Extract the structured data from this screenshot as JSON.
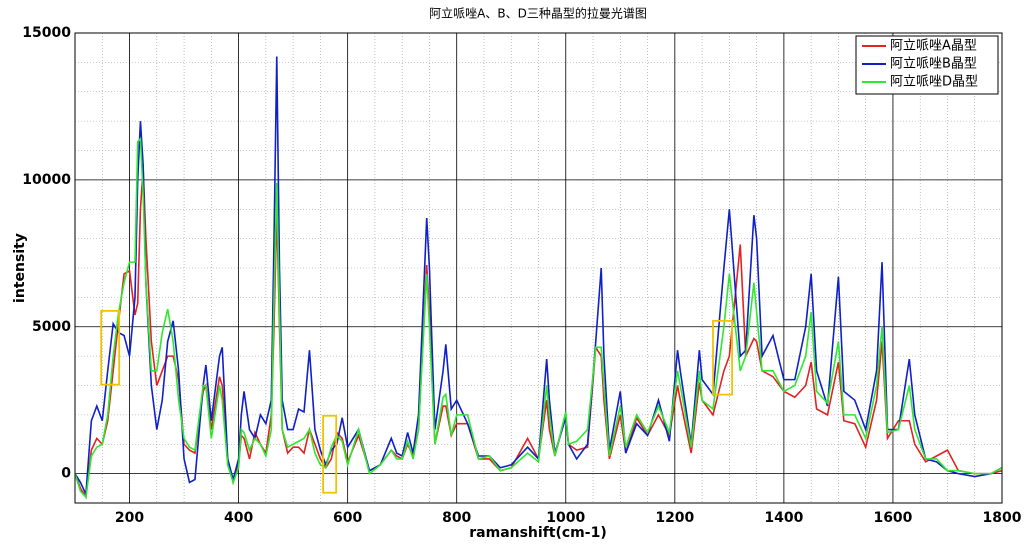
{
  "chart_data": {
    "type": "line",
    "title": "阿立哌唑A、B、D三种晶型的拉曼光谱图",
    "xlabel": "ramanshift(cm-1)",
    "ylabel": "intensity",
    "xlim": [
      100,
      1800
    ],
    "xticks": [
      200,
      400,
      600,
      800,
      1000,
      1200,
      1400,
      1600,
      1800
    ],
    "ylim": [
      -1000,
      15000
    ],
    "yticks": [
      0,
      5000,
      10000,
      15000
    ],
    "grid": true,
    "minor_grid": true,
    "legend": "upper right",
    "highlight_color": "#f2c200",
    "highlights": [
      {
        "xlim": [
          148,
          181
        ],
        "ylim": [
          3030,
          5540
        ]
      },
      {
        "xlim": [
          555,
          579
        ],
        "ylim": [
          -650,
          1970
        ]
      },
      {
        "xlim": [
          1270,
          1305
        ],
        "ylim": [
          2690,
          5200
        ]
      }
    ],
    "x": [
      100,
      110,
      120,
      130,
      140,
      150,
      160,
      170,
      180,
      190,
      200,
      210,
      215,
      220,
      225,
      230,
      240,
      250,
      260,
      270,
      280,
      290,
      300,
      310,
      320,
      335,
      340,
      350,
      365,
      370,
      380,
      390,
      400,
      405,
      410,
      420,
      430,
      440,
      450,
      460,
      465,
      470,
      475,
      480,
      490,
      500,
      510,
      520,
      530,
      540,
      550,
      560,
      570,
      580,
      590,
      600,
      620,
      640,
      660,
      680,
      690,
      700,
      710,
      720,
      730,
      745,
      750,
      760,
      775,
      780,
      790,
      800,
      820,
      840,
      860,
      880,
      900,
      930,
      950,
      965,
      970,
      980,
      1000,
      1005,
      1020,
      1040,
      1055,
      1065,
      1070,
      1080,
      1100,
      1110,
      1130,
      1150,
      1170,
      1190,
      1205,
      1210,
      1230,
      1245,
      1250,
      1270,
      1290,
      1300,
      1320,
      1330,
      1345,
      1350,
      1360,
      1380,
      1400,
      1420,
      1440,
      1450,
      1460,
      1480,
      1500,
      1510,
      1530,
      1550,
      1570,
      1580,
      1590,
      1610,
      1630,
      1640,
      1660,
      1680,
      1700,
      1720,
      1750,
      1780,
      1800
    ],
    "series": [
      {
        "name": "阿立哌唑A晶型",
        "color": "#e32222",
        "values": [
          0,
          -500,
          -800,
          800,
          1200,
          1000,
          1800,
          3500,
          5200,
          6800,
          6900,
          5400,
          5800,
          9000,
          10400,
          8000,
          4500,
          3000,
          3500,
          4000,
          4000,
          3200,
          1000,
          800,
          700,
          2800,
          3000,
          1500,
          3300,
          3000,
          500,
          -300,
          300,
          1300,
          1200,
          500,
          1400,
          1000,
          700,
          2000,
          5000,
          9000,
          5000,
          1500,
          700,
          900,
          900,
          700,
          1500,
          1000,
          500,
          200,
          500,
          1400,
          1200,
          400,
          1300,
          100,
          300,
          800,
          600,
          500,
          1000,
          600,
          1500,
          7100,
          5500,
          1000,
          2300,
          2300,
          1300,
          1700,
          1700,
          500,
          500,
          100,
          200,
          1200,
          500,
          2500,
          1500,
          600,
          2000,
          1000,
          800,
          900,
          4300,
          4000,
          2500,
          500,
          2000,
          700,
          1900,
          1300,
          2000,
          1300,
          3000,
          2500,
          700,
          3100,
          2500,
          2000,
          3500,
          4000,
          7800,
          4000,
          4600,
          4500,
          3500,
          3300,
          2800,
          2600,
          3000,
          3800,
          2200,
          2000,
          3800,
          1800,
          1700,
          900,
          2500,
          4500,
          1200,
          1800,
          1800,
          1000,
          400,
          600,
          800,
          100,
          0,
          0,
          100
        ]
      },
      {
        "name": "阿立哌唑B晶型",
        "color": "#1020c8",
        "values": [
          0,
          -300,
          -700,
          1800,
          2300,
          1800,
          3500,
          5100,
          4800,
          4700,
          4000,
          6000,
          10000,
          12000,
          10500,
          6500,
          3000,
          1500,
          2500,
          4500,
          5200,
          3500,
          500,
          -300,
          -200,
          3000,
          3700,
          1800,
          4000,
          4300,
          500,
          -200,
          500,
          2000,
          2800,
          1500,
          1200,
          2000,
          1700,
          2500,
          8000,
          14200,
          7000,
          2500,
          1500,
          1500,
          2200,
          2100,
          4200,
          1500,
          800,
          300,
          800,
          1000,
          1900,
          900,
          1500,
          100,
          300,
          1200,
          700,
          600,
          1400,
          700,
          2000,
          8700,
          7000,
          1500,
          3500,
          4400,
          2200,
          2500,
          1700,
          600,
          600,
          200,
          300,
          900,
          500,
          3900,
          2500,
          700,
          1900,
          1000,
          500,
          1000,
          4500,
          7000,
          4000,
          800,
          2800,
          700,
          1700,
          1300,
          2500,
          1100,
          4200,
          3500,
          1000,
          4200,
          3200,
          2700,
          7000,
          9000,
          4000,
          4200,
          8800,
          8000,
          4000,
          4700,
          3200,
          3200,
          5000,
          6800,
          3500,
          2300,
          6700,
          2800,
          2500,
          1500,
          3500,
          7200,
          1500,
          1500,
          3900,
          2000,
          500,
          400,
          100,
          0,
          -100,
          0,
          200
        ]
      },
      {
        "name": "阿立哌唑D晶型",
        "color": "#2ee82e",
        "values": [
          0,
          -600,
          -800,
          600,
          900,
          1000,
          2000,
          4000,
          5500,
          6500,
          7200,
          7200,
          11300,
          11400,
          9500,
          6500,
          3500,
          3500,
          4800,
          5600,
          4500,
          2500,
          1200,
          900,
          800,
          3000,
          3000,
          1200,
          3000,
          2500,
          300,
          -300,
          200,
          1500,
          1400,
          800,
          1200,
          1000,
          600,
          1500,
          6000,
          9900,
          5500,
          1500,
          900,
          1000,
          1100,
          1200,
          1500,
          700,
          300,
          200,
          900,
          1300,
          1100,
          300,
          1500,
          0,
          300,
          800,
          500,
          500,
          1100,
          500,
          1500,
          6800,
          5000,
          1000,
          2600,
          2700,
          1300,
          2000,
          2000,
          500,
          600,
          100,
          200,
          700,
          400,
          3000,
          2000,
          600,
          2100,
          1000,
          1100,
          1500,
          4300,
          4300,
          3000,
          600,
          2300,
          900,
          2000,
          1400,
          2300,
          1400,
          3500,
          3000,
          900,
          3500,
          2500,
          2200,
          5000,
          6800,
          3500,
          4000,
          6500,
          5500,
          3500,
          3500,
          2800,
          3000,
          4000,
          5500,
          2800,
          2400,
          4500,
          2000,
          2000,
          1200,
          3000,
          5000,
          1400,
          1500,
          3000,
          1500,
          500,
          500,
          100,
          100,
          0,
          0,
          200
        ]
      }
    ]
  }
}
